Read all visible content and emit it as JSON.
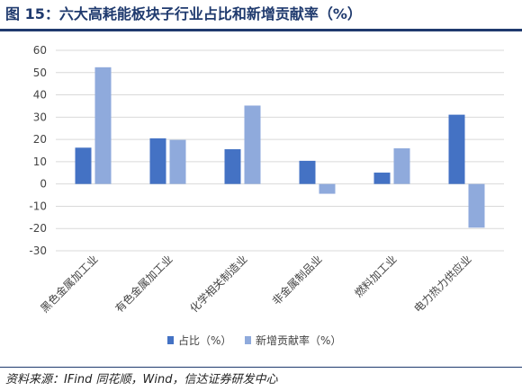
{
  "figure_title": "图 15：六大高耗能板块子行业占比和新增贡献率（%）",
  "source_text": "资料来源：IFind 同花顺，Wind，信达证券研发中心",
  "colors": {
    "series1": "#4472c4",
    "series2": "#8faadc",
    "title": "#1f3a6e"
  },
  "chart_data": {
    "type": "bar",
    "title": "",
    "xlabel": "",
    "ylabel": "",
    "ylim": [
      -30,
      60
    ],
    "yticks": [
      60,
      50,
      40,
      30,
      20,
      10,
      0,
      -10,
      -20,
      -30
    ],
    "grid": true,
    "legend_position": "bottom",
    "categories": [
      "黑色金属加工业",
      "有色金属加工业",
      "化学相关制造业",
      "非金属制品业",
      "燃料加工业",
      "电力热力供应业"
    ],
    "series": [
      {
        "name": "占比（%）",
        "values": [
          16.3,
          20.5,
          15.6,
          10.4,
          5.1,
          31.1
        ]
      },
      {
        "name": "新增贡献率（%）",
        "values": [
          52.4,
          19.8,
          35.2,
          -4.4,
          16.0,
          -19.6
        ]
      }
    ]
  }
}
